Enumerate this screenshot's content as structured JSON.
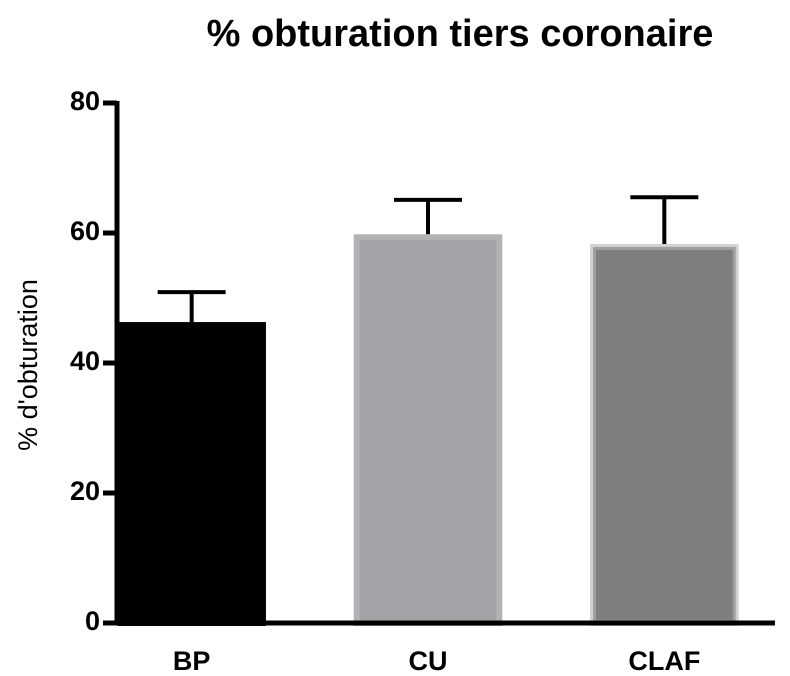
{
  "chart_data": {
    "type": "bar",
    "title": "% obturation tiers coronaire",
    "y_label": "% d'obturation",
    "categories": [
      "BP",
      "CU",
      "CLAF"
    ],
    "values": [
      46.3,
      59.8,
      58.3
    ],
    "errors": [
      4.6,
      5.3,
      7.2
    ],
    "colors": [
      "#000000",
      "#a3a3a7",
      "#7f7f7f"
    ],
    "ylim": [
      0,
      80
    ],
    "yticks": [
      0,
      20,
      40,
      60,
      80
    ],
    "grid": false
  }
}
